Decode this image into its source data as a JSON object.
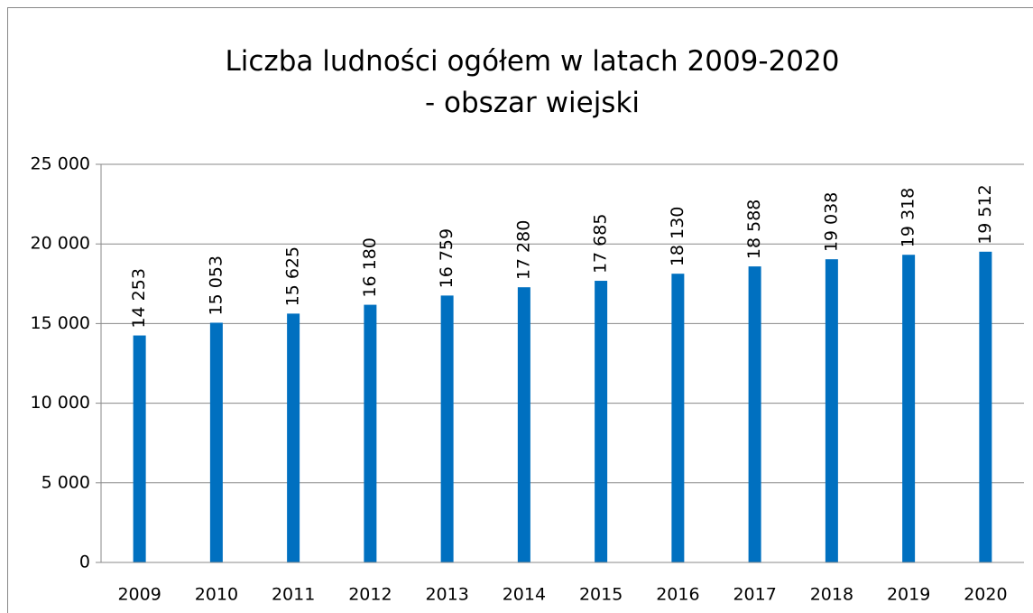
{
  "chart_data": {
    "type": "bar",
    "title": [
      "Liczba ludności ogółem w latach 2009-2020",
      "- obszar wiejski"
    ],
    "categories": [
      "2009",
      "2010",
      "2011",
      "2012",
      "2013",
      "2014",
      "2015",
      "2016",
      "2017",
      "2018",
      "2019",
      "2020"
    ],
    "values": [
      14253,
      15053,
      15625,
      16180,
      16759,
      17280,
      17685,
      18130,
      18588,
      19038,
      19318,
      19512
    ],
    "value_labels": [
      "14 253",
      "15 053",
      "15 625",
      "16 180",
      "16 759",
      "17 280",
      "17 685",
      "18 130",
      "18 588",
      "19 038",
      "19 318",
      "19 512"
    ],
    "color": "#0070c0",
    "ylim": [
      0,
      25000
    ],
    "yticks": [
      0,
      {
        "value": 5000,
        "label": "5 000"
      },
      {
        "value": 10000,
        "label": "10 000"
      },
      {
        "value": 15000,
        "label": "15 000"
      },
      {
        "value": 20000,
        "label": "20 000"
      },
      {
        "value": 25000,
        "label": "25 000"
      }
    ],
    "grid": true
  }
}
